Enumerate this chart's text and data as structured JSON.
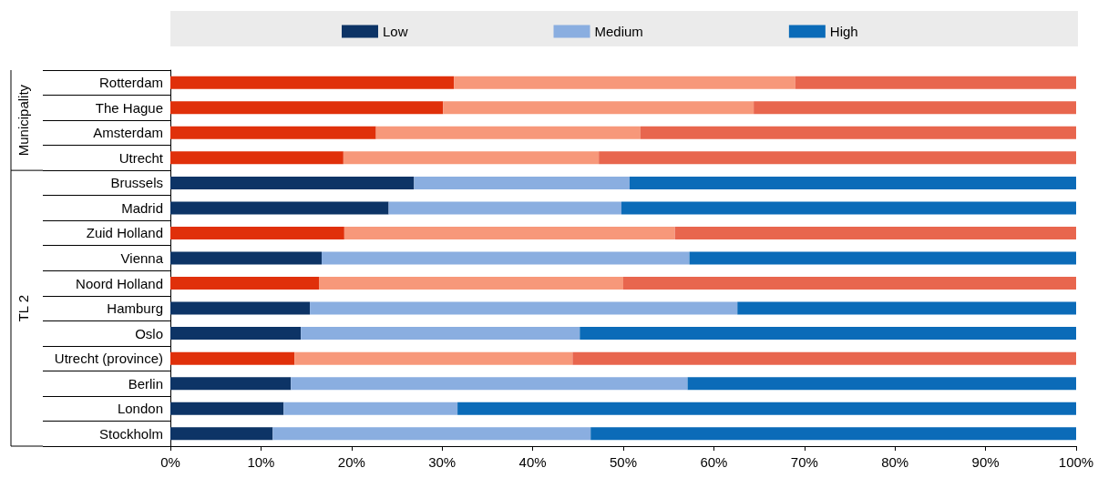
{
  "chart_data": {
    "type": "bar",
    "orientation": "horizontal",
    "stacked": true,
    "categories": [
      "Rotterdam",
      "The Hague",
      "Amsterdam",
      "Utrecht",
      "Brussels",
      "Madrid",
      "Zuid Holland",
      "Vienna",
      "Noord Holland",
      "Hamburg",
      "Oslo",
      "Utrecht (province)",
      "Berlin",
      "London",
      "Stockholm"
    ],
    "series": [
      {
        "name": "Low",
        "color": "#0d3466",
        "values": [
          31.3,
          30.1,
          22.7,
          19.1,
          26.9,
          24.1,
          19.2,
          16.7,
          16.4,
          15.4,
          14.4,
          13.7,
          13.3,
          12.5,
          11.3
        ],
        "colors": [
          "#e0300a",
          "#e0300a",
          "#e0300a",
          "#e0300a",
          "#0d3466",
          "#0d3466",
          "#e0300a",
          "#0d3466",
          "#e0300a",
          "#0d3466",
          "#0d3466",
          "#e0300a",
          "#0d3466",
          "#0d3466",
          "#0d3466"
        ]
      },
      {
        "name": "Medium",
        "color": "#8aaee0",
        "values": [
          37.7,
          34.3,
          29.2,
          28.2,
          23.8,
          25.7,
          36.5,
          40.6,
          33.6,
          47.2,
          30.8,
          30.7,
          43.8,
          19.2,
          35.1
        ],
        "colors": [
          "#f7987a",
          "#f7987a",
          "#f7987a",
          "#f7987a",
          "#8aaee0",
          "#8aaee0",
          "#f7987a",
          "#8aaee0",
          "#f7987a",
          "#8aaee0",
          "#8aaee0",
          "#f7987a",
          "#8aaee0",
          "#8aaee0",
          "#8aaee0"
        ]
      },
      {
        "name": "High",
        "color": "#0b6bb8",
        "values": [
          31.0,
          35.6,
          48.1,
          52.7,
          49.3,
          50.2,
          44.3,
          42.7,
          50.0,
          37.4,
          54.8,
          55.6,
          42.9,
          68.3,
          53.6
        ],
        "colors": [
          "#e8664e",
          "#e8664e",
          "#e8664e",
          "#e8664e",
          "#0b6bb8",
          "#0b6bb8",
          "#e8664e",
          "#0b6bb8",
          "#e8664e",
          "#0b6bb8",
          "#0b6bb8",
          "#e8664e",
          "#0b6bb8",
          "#0b6bb8",
          "#0b6bb8"
        ]
      }
    ],
    "xlim": [
      0,
      100
    ],
    "xticks": [
      {
        "value": 0,
        "label": "0%"
      },
      {
        "value": 10,
        "label": "10%"
      },
      {
        "value": 20,
        "label": "20%"
      },
      {
        "value": 30,
        "label": "30%"
      },
      {
        "value": 40,
        "label": "40%"
      },
      {
        "value": 50,
        "label": "50%"
      },
      {
        "value": 60,
        "label": "60%"
      },
      {
        "value": 70,
        "label": "70%"
      },
      {
        "value": 80,
        "label": "80%"
      },
      {
        "value": 90,
        "label": "90%"
      },
      {
        "value": 100,
        "label": "100%"
      }
    ],
    "annotations": [
      "Municipality",
      "TL 2"
    ],
    "legend": "top",
    "grid": false
  }
}
